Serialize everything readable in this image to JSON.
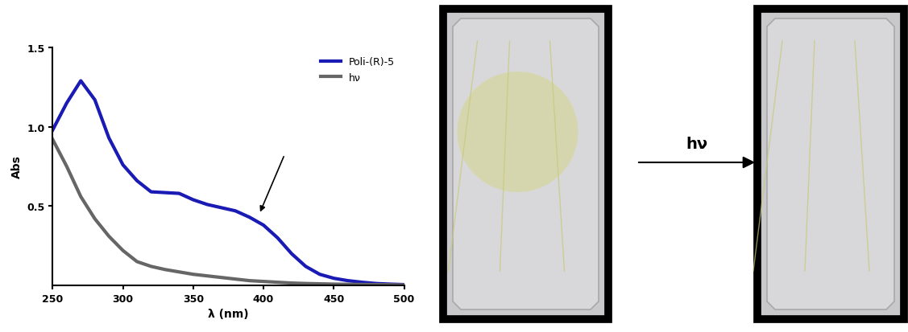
{
  "chart_data": {
    "type": "line",
    "x_label": "λ (nm)",
    "y_label": "Abs",
    "xlim": [
      250,
      500
    ],
    "ylim": [
      0,
      1.5
    ],
    "xticks": [
      250,
      300,
      350,
      400,
      450,
      500
    ],
    "yticks": [
      0.5,
      1.0,
      1.5
    ],
    "legend": "upper right",
    "x": [
      250,
      260,
      270,
      280,
      290,
      300,
      310,
      320,
      330,
      340,
      350,
      360,
      370,
      380,
      390,
      400,
      410,
      420,
      430,
      440,
      450,
      460,
      470,
      480,
      490,
      500
    ],
    "series": [
      {
        "name": "Poli-(R)-5",
        "color": "#1a1ab4",
        "values": [
          0.98,
          1.15,
          1.29,
          1.17,
          0.93,
          0.76,
          0.66,
          0.59,
          0.585,
          0.58,
          0.54,
          0.51,
          0.49,
          0.47,
          0.43,
          0.38,
          0.3,
          0.2,
          0.12,
          0.07,
          0.045,
          0.03,
          0.02,
          0.012,
          0.008,
          0.005
        ]
      },
      {
        "name": "hν",
        "color": "#666666",
        "values": [
          0.92,
          0.75,
          0.56,
          0.42,
          0.31,
          0.22,
          0.15,
          0.12,
          0.1,
          0.085,
          0.07,
          0.06,
          0.05,
          0.04,
          0.03,
          0.025,
          0.02,
          0.015,
          0.012,
          0.01,
          0.008,
          0.007,
          0.006,
          0.005,
          0.004,
          0.003
        ]
      }
    ],
    "annotations": [
      "hν"
    ]
  }
}
